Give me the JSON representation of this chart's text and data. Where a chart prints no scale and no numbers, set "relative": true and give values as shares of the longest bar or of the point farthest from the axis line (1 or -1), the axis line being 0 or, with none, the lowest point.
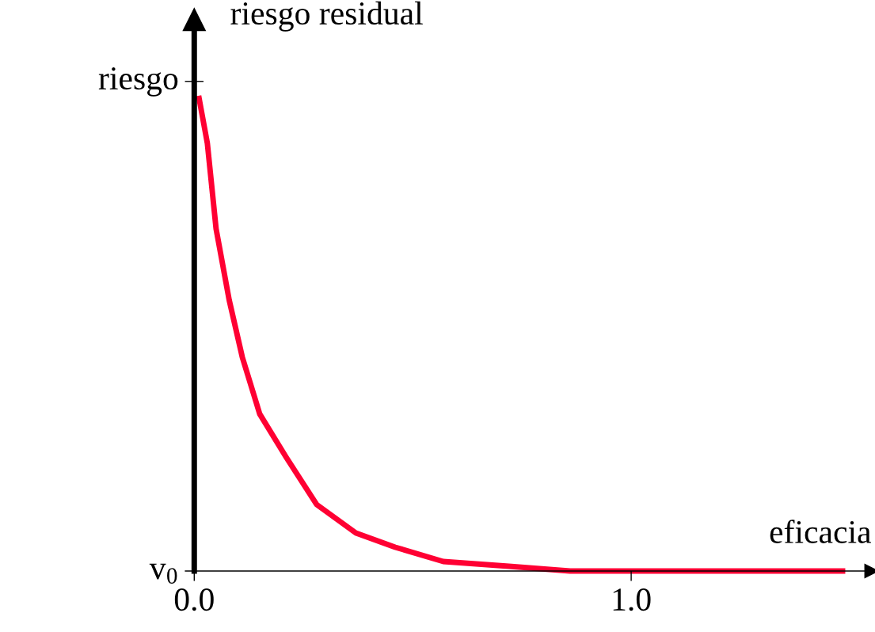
{
  "chart_data": {
    "type": "line",
    "xlabel": "eficacia",
    "ylabel": "riesgo residual",
    "relative": true,
    "x": [
      0.01,
      0.03,
      0.05,
      0.08,
      0.11,
      0.15,
      0.21,
      0.28,
      0.37,
      0.46,
      0.57,
      0.72,
      0.86,
      1.0,
      1.49
    ],
    "series": [
      {
        "color": "#ff0033",
        "values": [
          1.0,
          0.9,
          0.72,
          0.57,
          0.45,
          0.33,
          0.24,
          0.14,
          0.08,
          0.05,
          0.02,
          0.01,
          0.0,
          0.0,
          0.0
        ]
      }
    ],
    "annotations": [
      "riesgo",
      "v$_{0}$"
    ],
    "xlim": [
      -0.02,
      1.55
    ],
    "xticks": [
      {
        "value": 0,
        "label": "0.0"
      },
      {
        "value": 1,
        "label": "1.0"
      }
    ],
    "marker": "none",
    "line_style": "solid"
  }
}
